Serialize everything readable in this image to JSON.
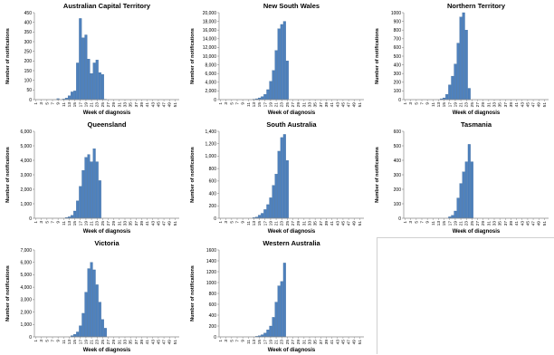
{
  "colors": {
    "bar": "#4f81bd",
    "bar_edge": "#2c5f94",
    "axis": "#888888",
    "text": "#000000"
  },
  "figure": {
    "xlabel": "Week of diagnosis",
    "ylabel": "Number of notifications"
  },
  "chart_data": [
    {
      "type": "bar",
      "title": "Australian Capital Territory",
      "xlabel": "Week of diagnosis",
      "ylabel": "Number of notifications",
      "x_tick_labels": [
        "1",
        "3",
        "5",
        "7",
        "9",
        "11",
        "13",
        "15",
        "17",
        "19",
        "21",
        "23",
        "25",
        "27",
        "29",
        "31",
        "33",
        "35",
        "37",
        "39",
        "41",
        "43",
        "45",
        "47",
        "49",
        "51"
      ],
      "y_tick_labels": [
        "0",
        "50",
        "100",
        "150",
        "200",
        "250",
        "300",
        "350",
        "400",
        "450"
      ],
      "ylim": [
        0,
        450
      ],
      "x": [
        9,
        11,
        12,
        13,
        14,
        15,
        16,
        17,
        18,
        19,
        20,
        21,
        22,
        23,
        24,
        25,
        26
      ],
      "values": [
        5,
        3,
        8,
        20,
        40,
        45,
        190,
        420,
        320,
        335,
        210,
        135,
        190,
        205,
        140,
        130,
        2
      ]
    },
    {
      "type": "bar",
      "title": "New South Wales",
      "xlabel": "Week of diagnosis",
      "ylabel": "Number of notifications",
      "x_tick_labels": [
        "1",
        "3",
        "5",
        "7",
        "9",
        "11",
        "13",
        "15",
        "17",
        "19",
        "21",
        "23",
        "25",
        "27",
        "29",
        "31",
        "33",
        "35",
        "37",
        "39",
        "41",
        "43",
        "45",
        "47",
        "49",
        "51"
      ],
      "y_tick_labels": [
        "0",
        "2,000",
        "4,000",
        "6,000",
        "8,000",
        "10,000",
        "12,000",
        "14,000",
        "16,000",
        "18,000",
        "20,000"
      ],
      "ylim": [
        0,
        20000
      ],
      "x": [
        13,
        14,
        15,
        16,
        17,
        18,
        19,
        20,
        21,
        22,
        23,
        24,
        25
      ],
      "values": [
        100,
        200,
        400,
        700,
        1200,
        2300,
        4200,
        6700,
        11300,
        16300,
        17300,
        18000,
        8900
      ]
    },
    {
      "type": "bar",
      "title": "Northern Territory",
      "xlabel": "Week of diagnosis",
      "ylabel": "Number of notifications",
      "x_tick_labels": [
        "1",
        "3",
        "5",
        "7",
        "9",
        "11",
        "13",
        "15",
        "17",
        "19",
        "21",
        "23",
        "25",
        "27",
        "29",
        "31",
        "33",
        "35",
        "37",
        "39",
        "41",
        "43",
        "45",
        "47",
        "49",
        "51"
      ],
      "y_tick_labels": [
        "0",
        "100",
        "200",
        "300",
        "400",
        "500",
        "600",
        "700",
        "800",
        "900",
        "1000"
      ],
      "ylim": [
        0,
        1000
      ],
      "x": [
        14,
        15,
        16,
        17,
        18,
        19,
        20,
        21,
        22,
        23,
        24
      ],
      "values": [
        10,
        20,
        60,
        170,
        270,
        410,
        650,
        950,
        1000,
        800,
        130
      ]
    },
    {
      "type": "bar",
      "title": "Queensland",
      "xlabel": "Week of diagnosis",
      "ylabel": "Number of notifications",
      "x_tick_labels": [
        "1",
        "3",
        "5",
        "7",
        "9",
        "11",
        "13",
        "15",
        "17",
        "19",
        "21",
        "23",
        "25",
        "27",
        "29",
        "31",
        "33",
        "35",
        "37",
        "39",
        "41",
        "43",
        "45",
        "47",
        "49",
        "51"
      ],
      "y_tick_labels": [
        "0",
        "1,000",
        "2,000",
        "3,000",
        "4,000",
        "5,000",
        "6,000"
      ],
      "ylim": [
        0,
        6000
      ],
      "x": [
        12,
        13,
        14,
        15,
        16,
        17,
        18,
        19,
        20,
        21,
        22,
        23,
        24
      ],
      "values": [
        50,
        100,
        200,
        500,
        1200,
        2200,
        3300,
        4200,
        4400,
        3900,
        4800,
        3900,
        2600
      ]
    },
    {
      "type": "bar",
      "title": "South Australia",
      "xlabel": "Week of diagnosis",
      "ylabel": "Number of notifications",
      "x_tick_labels": [
        "1",
        "3",
        "5",
        "7",
        "9",
        "11",
        "13",
        "15",
        "17",
        "19",
        "21",
        "23",
        "25",
        "27",
        "29",
        "31",
        "33",
        "35",
        "37",
        "39",
        "41",
        "43",
        "45",
        "47",
        "49",
        "51"
      ],
      "y_tick_labels": [
        "0",
        "200",
        "400",
        "600",
        "800",
        "1,000",
        "1,200",
        "1,400"
      ],
      "ylim": [
        0,
        1400
      ],
      "x": [
        13,
        14,
        15,
        16,
        17,
        18,
        19,
        20,
        21,
        22,
        23,
        24,
        25
      ],
      "values": [
        10,
        20,
        50,
        80,
        140,
        220,
        330,
        530,
        710,
        1080,
        1300,
        1350,
        930
      ]
    },
    {
      "type": "bar",
      "title": "Tasmania",
      "xlabel": "Week of diagnosis",
      "ylabel": "Number of notifications",
      "x_tick_labels": [
        "1",
        "3",
        "5",
        "7",
        "9",
        "11",
        "13",
        "15",
        "17",
        "19",
        "21",
        "23",
        "25",
        "27",
        "29",
        "31",
        "33",
        "35",
        "37",
        "39",
        "41",
        "43",
        "45",
        "47",
        "49",
        "51"
      ],
      "y_tick_labels": [
        "0",
        "100",
        "200",
        "300",
        "400",
        "500",
        "600"
      ],
      "ylim": [
        0,
        600
      ],
      "x": [
        17,
        18,
        19,
        20,
        21,
        22,
        23,
        24,
        25
      ],
      "values": [
        10,
        20,
        50,
        140,
        240,
        320,
        390,
        510,
        390
      ]
    },
    {
      "type": "bar",
      "title": "Victoria",
      "xlabel": "Week of diagnosis",
      "ylabel": "Number of notifications",
      "x_tick_labels": [
        "1",
        "3",
        "5",
        "7",
        "9",
        "11",
        "13",
        "15",
        "17",
        "19",
        "21",
        "23",
        "25",
        "27",
        "29",
        "31",
        "33",
        "35",
        "37",
        "39",
        "41",
        "43",
        "45",
        "47",
        "49",
        "51"
      ],
      "y_tick_labels": [
        "0",
        "1,000",
        "2,000",
        "3,000",
        "4,000",
        "5,000",
        "6,000",
        "7,000"
      ],
      "ylim": [
        0,
        7000
      ],
      "x": [
        14,
        15,
        16,
        17,
        18,
        19,
        20,
        21,
        22,
        23,
        24,
        25,
        26
      ],
      "values": [
        100,
        200,
        400,
        900,
        1900,
        3600,
        5500,
        6000,
        5400,
        4200,
        2800,
        1400,
        700
      ]
    },
    {
      "type": "bar",
      "title": "Western Australia",
      "xlabel": "Week of diagnosis",
      "ylabel": "Number of notifications",
      "x_tick_labels": [
        "1",
        "3",
        "5",
        "7",
        "9",
        "11",
        "13",
        "15",
        "17",
        "19",
        "21",
        "23",
        "25",
        "27",
        "29",
        "31",
        "33",
        "35",
        "37",
        "39",
        "41",
        "43",
        "45",
        "47",
        "49",
        "51"
      ],
      "y_tick_labels": [
        "0",
        "200",
        "400",
        "600",
        "800",
        "1000",
        "1200",
        "1400",
        "1600"
      ],
      "ylim": [
        0,
        1600
      ],
      "x": [
        14,
        15,
        16,
        17,
        18,
        19,
        20,
        21,
        22,
        23,
        24
      ],
      "values": [
        10,
        20,
        40,
        70,
        130,
        200,
        360,
        640,
        940,
        1020,
        1360
      ]
    }
  ]
}
